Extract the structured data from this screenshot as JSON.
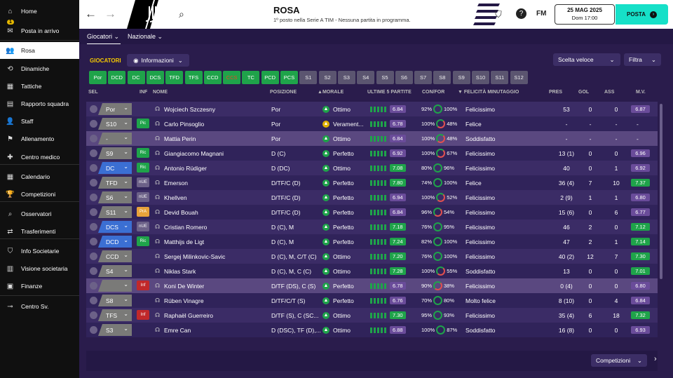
{
  "sidebar": {
    "items": [
      {
        "label": "Home",
        "icon": "home-icon",
        "glyph": "⌂"
      },
      {
        "label": "Posta in arrivo",
        "icon": "inbox-icon",
        "glyph": "✉",
        "badge": "1"
      },
      {
        "label": "Rosa",
        "icon": "squad-icon",
        "glyph": "👥"
      },
      {
        "label": "Dinamiche",
        "icon": "dynamics-icon",
        "glyph": "⟲"
      },
      {
        "label": "Tattiche",
        "icon": "tactics-icon",
        "glyph": "▦"
      },
      {
        "label": "Rapporto squadra",
        "icon": "report-icon",
        "glyph": "▤"
      },
      {
        "label": "Staff",
        "icon": "staff-icon",
        "glyph": "👤"
      },
      {
        "label": "Allenamento",
        "icon": "training-icon",
        "glyph": "⚑"
      },
      {
        "label": "Centro medico",
        "icon": "medical-icon",
        "glyph": "✚"
      },
      {
        "label": "Calendario",
        "icon": "calendar-icon",
        "glyph": "▦"
      },
      {
        "label": "Competizioni",
        "icon": "trophy-icon",
        "glyph": "🏆"
      },
      {
        "label": "Osservatori",
        "icon": "scout-icon",
        "glyph": "⌕"
      },
      {
        "label": "Trasferimenti",
        "icon": "transfer-icon",
        "glyph": "⇄"
      },
      {
        "label": "Info Societarie",
        "icon": "club-info-icon",
        "glyph": "⛉"
      },
      {
        "label": "Visione societaria",
        "icon": "vision-icon",
        "glyph": "▥"
      },
      {
        "label": "Finanze",
        "icon": "finance-icon",
        "glyph": "▣"
      },
      {
        "label": "Centro Sv.",
        "icon": "development-icon",
        "glyph": "⊸"
      }
    ]
  },
  "header": {
    "title": "ROSA",
    "subtitle": "1º posto nella Serie A TIM - Nessuna partita in programma.",
    "date": "25 MAG 2025",
    "time": "Dom 17:00",
    "posta": "POSTA",
    "fm": "FM"
  },
  "tabs": [
    "Giocatori",
    "Nazionale"
  ],
  "toolbar": {
    "section": "GIOCATORI",
    "view": "Informazioni",
    "quick": "Scelta veloce",
    "filter": "Filtra"
  },
  "filters": [
    {
      "label": "Por",
      "on": true
    },
    {
      "label": "DCD",
      "on": true
    },
    {
      "label": "DC",
      "on": true
    },
    {
      "label": "DCS",
      "on": true
    },
    {
      "label": "TFD",
      "on": true
    },
    {
      "label": "TFS",
      "on": true
    },
    {
      "label": "CCD",
      "on": true
    },
    {
      "label": "CCS",
      "on": true
    },
    {
      "label": "TC",
      "on": true
    },
    {
      "label": "PCD",
      "on": true
    },
    {
      "label": "PCS",
      "on": true
    },
    {
      "label": "S1",
      "on": false
    },
    {
      "label": "S2",
      "on": false
    },
    {
      "label": "S3",
      "on": false
    },
    {
      "label": "S4",
      "on": false
    },
    {
      "label": "S5",
      "on": false
    },
    {
      "label": "S6",
      "on": false
    },
    {
      "label": "S7",
      "on": false
    },
    {
      "label": "S8",
      "on": false
    },
    {
      "label": "S9",
      "on": false
    },
    {
      "label": "S10",
      "on": false
    },
    {
      "label": "S11",
      "on": false
    },
    {
      "label": "S12",
      "on": false
    }
  ],
  "columns": {
    "sel": "SEL",
    "inf": "INF",
    "name": "NOME",
    "pos": "POSIZIONE",
    "morale": "MORALE",
    "last5": "ULTIME 5 PARTITE",
    "confor": "CON/FOR",
    "happy": "FELICITÀ MINUTAGGIO",
    "pres": "PRES",
    "gol": "GOL",
    "ass": "ASS",
    "mv": "M.V."
  },
  "players": [
    {
      "sel": "Por",
      "inf": "",
      "name": "Wojciech Szczesny",
      "pos": "Por",
      "morale": "Ottimo",
      "rating": "6.84",
      "con": "92%",
      "for": "100%",
      "happy": "Felicissimo",
      "pres": "53",
      "gol": "0",
      "ass": "0",
      "mv": "6.87"
    },
    {
      "sel": "S10",
      "inf": "Pic",
      "name": "Carlo Pinsoglio",
      "pos": "Por",
      "morale": "Verament...",
      "rating": "6.78",
      "con": "100%",
      "for": "48%",
      "happy": "Felice",
      "pres": "-",
      "gol": "-",
      "ass": "-",
      "mv": "-"
    },
    {
      "sel": "-",
      "inf": "",
      "name": "Mattia Perin",
      "pos": "Por",
      "morale": "Ottimo",
      "rating": "6.84",
      "con": "100%",
      "for": "48%",
      "happy": "Soddisfatto",
      "pres": "-",
      "gol": "-",
      "ass": "-",
      "mv": "-"
    },
    {
      "sel": "S9",
      "inf": "Ric",
      "name": "Giangiacomo Magnani",
      "pos": "D (C)",
      "morale": "Perfetto",
      "rating": "6.92",
      "con": "100%",
      "for": "67%",
      "happy": "Felicissimo",
      "pres": "13 (1)",
      "gol": "0",
      "ass": "0",
      "mv": "6.96"
    },
    {
      "sel": "DC",
      "inf": "Ric",
      "name": "Antonio Rüdiger",
      "pos": "D (DC)",
      "morale": "Ottimo",
      "rating": "7.08",
      "con": "80%",
      "for": "96%",
      "happy": "Felicissimo",
      "pres": "40",
      "gol": "0",
      "ass": "1",
      "mv": "6.92"
    },
    {
      "sel": "TFD",
      "inf": "nUE",
      "name": "Emerson",
      "pos": "D/TF/C (D)",
      "morale": "Perfetto",
      "rating": "7.80",
      "con": "74%",
      "for": "100%",
      "happy": "Felice",
      "pres": "36 (4)",
      "gol": "7",
      "ass": "10",
      "mv": "7.37"
    },
    {
      "sel": "S6",
      "inf": "nUE",
      "name": "Khellven",
      "pos": "D/TF/C (D)",
      "morale": "Perfetto",
      "rating": "6.94",
      "con": "100%",
      "for": "52%",
      "happy": "Felicissimo",
      "pres": "2 (9)",
      "gol": "1",
      "ass": "1",
      "mv": "6.80"
    },
    {
      "sel": "S11",
      "inf": "PrA",
      "name": "Devid Bouah",
      "pos": "D/TF/C (D)",
      "morale": "Perfetto",
      "rating": "6.84",
      "con": "96%",
      "for": "54%",
      "happy": "Felicissimo",
      "pres": "15 (6)",
      "gol": "0",
      "ass": "6",
      "mv": "6.77"
    },
    {
      "sel": "DCS",
      "inf": "nUE",
      "name": "Cristian Romero",
      "pos": "D (C), M",
      "morale": "Perfetto",
      "rating": "7.18",
      "con": "76%",
      "for": "95%",
      "happy": "Felicissimo",
      "pres": "46",
      "gol": "2",
      "ass": "0",
      "mv": "7.12"
    },
    {
      "sel": "DCD",
      "inf": "Ric",
      "name": "Matthijs de Ligt",
      "pos": "D (C), M",
      "morale": "Perfetto",
      "rating": "7.24",
      "con": "82%",
      "for": "100%",
      "happy": "Felicissimo",
      "pres": "47",
      "gol": "2",
      "ass": "1",
      "mv": "7.14"
    },
    {
      "sel": "CCD",
      "inf": "",
      "name": "Sergej Milinkovic-Savic",
      "pos": "D (C), M, C/T (C)",
      "morale": "Ottimo",
      "rating": "7.20",
      "con": "76%",
      "for": "100%",
      "happy": "Felicissimo",
      "pres": "40 (2)",
      "gol": "12",
      "ass": "7",
      "mv": "7.30"
    },
    {
      "sel": "S4",
      "inf": "",
      "name": "Niklas Stark",
      "pos": "D (C), M, C (C)",
      "morale": "Ottimo",
      "rating": "7.28",
      "con": "100%",
      "for": "55%",
      "happy": "Soddisfatto",
      "pres": "13",
      "gol": "0",
      "ass": "0",
      "mv": "7.01"
    },
    {
      "sel": "",
      "inf": "Inf",
      "name": "Koni De Winter",
      "pos": "D/TF (DS), C (S)",
      "morale": "Perfetto",
      "rating": "6.78",
      "con": "90%",
      "for": "38%",
      "happy": "Felicissimo",
      "pres": "0 (4)",
      "gol": "0",
      "ass": "0",
      "mv": "6.80"
    },
    {
      "sel": "S8",
      "inf": "",
      "name": "Rúben Vinagre",
      "pos": "D/TF/C/T (S)",
      "morale": "Perfetto",
      "rating": "6.76",
      "con": "70%",
      "for": "80%",
      "happy": "Molto felice",
      "pres": "8 (10)",
      "gol": "0",
      "ass": "4",
      "mv": "6.84"
    },
    {
      "sel": "TFS",
      "inf": "Inf",
      "name": "Raphaël Guerreiro",
      "pos": "D/TF (S), C (SC...",
      "morale": "Ottimo",
      "rating": "7.30",
      "con": "95%",
      "for": "93%",
      "happy": "Felicissimo",
      "pres": "35 (4)",
      "gol": "6",
      "ass": "18",
      "mv": "7.32"
    },
    {
      "sel": "S3",
      "inf": "",
      "name": "Emre Can",
      "pos": "D (DSC), TF (D),...",
      "morale": "Ottimo",
      "rating": "6.88",
      "con": "100%",
      "for": "87%",
      "happy": "Soddisfatto",
      "pres": "16 (8)",
      "gol": "0",
      "ass": "0",
      "mv": "6.93"
    }
  ],
  "footer": {
    "competitions": "Competizioni"
  },
  "colors": {
    "accent": "#16e0c8",
    "green": "#1fa34a",
    "purple": "#6a4c9a",
    "blueBadge": "#3b6fd3"
  }
}
